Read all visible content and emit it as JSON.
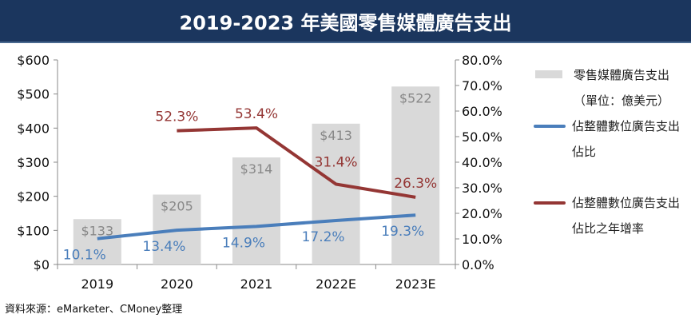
{
  "chart_data": {
    "type": "bar+line",
    "title": "2019-2023 年美國零售媒體廣告支出",
    "categories": [
      "2019",
      "2020",
      "2021",
      "2022E",
      "2023E"
    ],
    "left_axis": {
      "ticks": [
        "$0",
        "$100",
        "$200",
        "$300",
        "$400",
        "$500",
        "$600"
      ],
      "range": [
        0,
        600
      ]
    },
    "right_axis": {
      "ticks": [
        "0.0%",
        "10.0%",
        "20.0%",
        "30.0%",
        "40.0%",
        "50.0%",
        "60.0%",
        "70.0%",
        "80.0%"
      ],
      "range": [
        0,
        80
      ]
    },
    "series": [
      {
        "name": "零售媒體廣告支出（單位：億美元）",
        "type": "bar",
        "axis": "left",
        "color": "#d9d9d9",
        "values": [
          133,
          205,
          314,
          413,
          522
        ],
        "labels": [
          "$133",
          "$205",
          "$314",
          "$413",
          "$522"
        ]
      },
      {
        "name": "佔整體數位廣告支出佔比",
        "type": "line",
        "axis": "right",
        "color": "#4a7ebb",
        "values": [
          10.1,
          13.4,
          14.9,
          17.2,
          19.3
        ],
        "labels": [
          "10.1%",
          "13.4%",
          "14.9%",
          "17.2%",
          "19.3%"
        ]
      },
      {
        "name": "佔整體數位廣告支出佔比之年增率",
        "type": "line",
        "axis": "right",
        "color": "#943634",
        "values": [
          null,
          52.3,
          53.4,
          31.4,
          26.3
        ],
        "labels": [
          "",
          "52.3%",
          "53.4%",
          "31.4%",
          "26.3%"
        ]
      }
    ],
    "legend": "right",
    "grid": false
  },
  "source": "資料來源：eMarketer、CMoney整理"
}
